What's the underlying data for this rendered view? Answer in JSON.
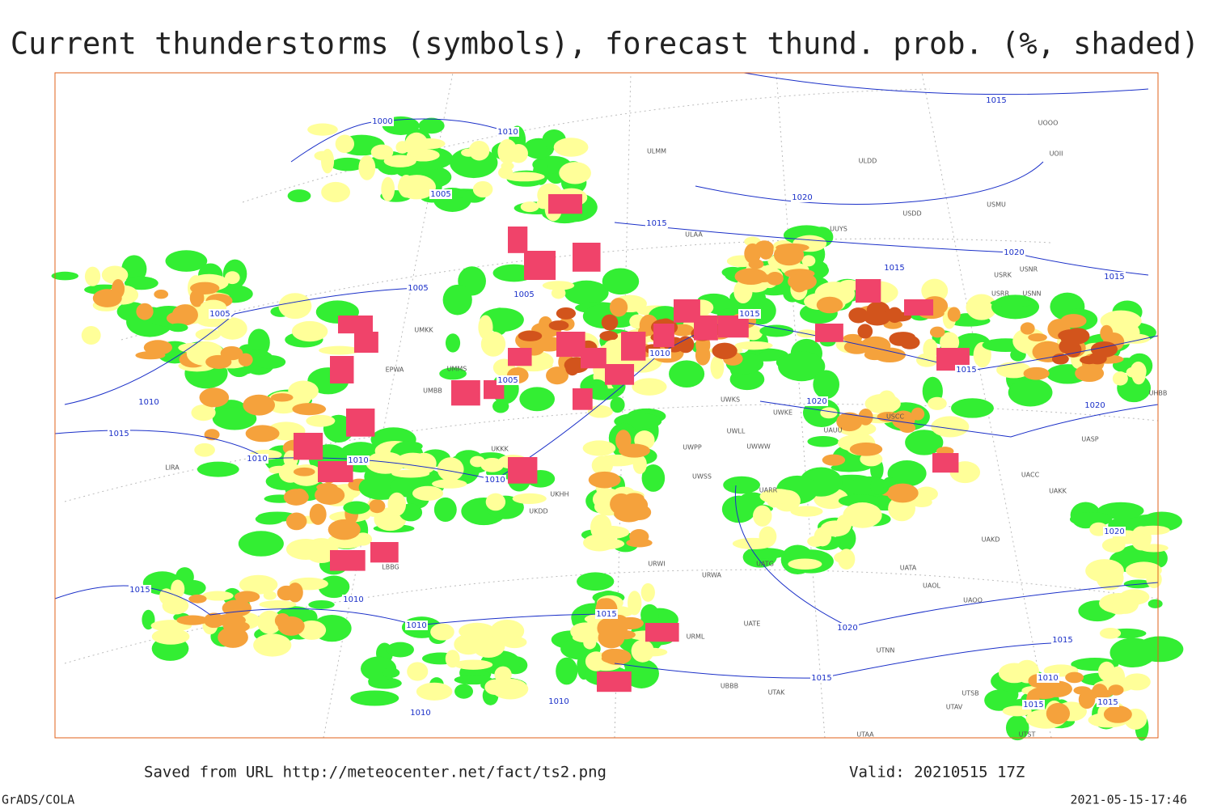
{
  "header": {
    "title": "Current thunderstorms (symbols), forecast thund. prob. (%, shaded)"
  },
  "footer": {
    "source": "Saved from URL http://meteocenter.net/fact/ts2.png",
    "valid": "Valid: 20210515 17Z",
    "software": "GrADS/COLA",
    "timestamp": "2021-05-15-17:46"
  },
  "map": {
    "isobar_labels": [
      1000,
      1010,
      1005,
      1005,
      1005,
      1005,
      1010,
      1015,
      1010,
      1010,
      1010,
      1010,
      1005,
      1015,
      1020,
      1015,
      1015,
      1020,
      1015,
      1015,
      1015,
      1020,
      1020,
      1020,
      1015,
      1010,
      1010,
      1015,
      1020,
      1015,
      1015,
      1010,
      1015,
      1015,
      1010,
      1010
    ],
    "stations": [
      "ULMM",
      "ULDD",
      "USMU",
      "USDD",
      "UUYS",
      "ULAA",
      "UOOO",
      "UOII",
      "USRK",
      "USNR",
      "USRR",
      "USNN",
      "EPWA",
      "LIRA",
      "UWKS",
      "UWKE",
      "UWPP",
      "UWWW",
      "UWSS",
      "UWLL",
      "UARR",
      "USCC",
      "UASP",
      "UACC",
      "UAKK",
      "UAKD",
      "UATA",
      "UAOL",
      "UAOO",
      "UATG",
      "URWA",
      "URWI",
      "UTNN",
      "URML",
      "UBBB",
      "UTAK",
      "UATE",
      "UKDD",
      "UKHH",
      "UKKK",
      "UMBB",
      "UMMS",
      "UMKK",
      "LBBG",
      "UTST",
      "UTAV",
      "UTSB",
      "UTAA",
      "UAUU",
      "UHBB"
    ]
  }
}
